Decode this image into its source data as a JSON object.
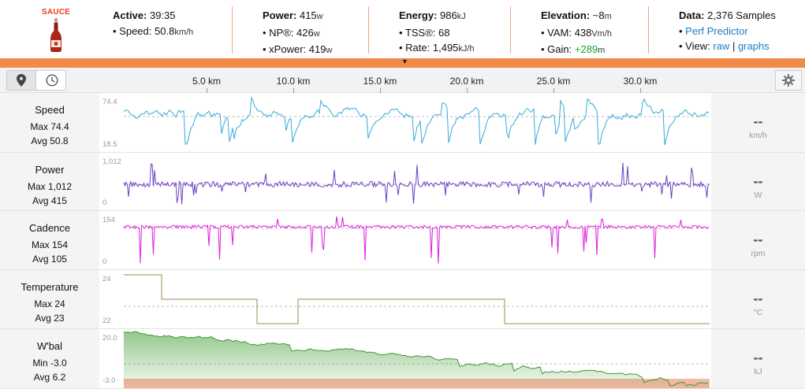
{
  "logo": {
    "brand": "SAUCE"
  },
  "header": {
    "active": {
      "label": "Active:",
      "value": "39:35",
      "speed_label": "Speed:",
      "speed_value": "50.8",
      "speed_unit": "km/h"
    },
    "power": {
      "label": "Power:",
      "value": "415",
      "unit": "w",
      "np_label": "NP®:",
      "np_value": "426",
      "np_unit": "w",
      "xpower_label": "xPower:",
      "xpower_value": "419",
      "xpower_unit": "w"
    },
    "energy": {
      "label": "Energy:",
      "value": "986",
      "unit": "kJ",
      "tss_label": "TSS®:",
      "tss_value": "68",
      "rate_label": "Rate:",
      "rate_value": "1,495",
      "rate_unit": "kJ/h"
    },
    "elevation": {
      "label": "Elevation:",
      "value": "~8",
      "unit": "m",
      "vam_label": "VAM:",
      "vam_value": "438",
      "vam_unit": "Vm/h",
      "gain_label": "Gain:",
      "gain_value": "+289",
      "gain_unit": "m"
    },
    "data": {
      "label": "Data:",
      "value": "2,376 Samples",
      "perf_link": "Perf Predictor",
      "view_label": "View:",
      "view_raw": "raw",
      "view_sep": "|",
      "view_graphs": "graphs"
    }
  },
  "collapse": {
    "icon": "double-chevron-down-icon",
    "glyph": "»"
  },
  "distance_axis": {
    "ticks": [
      "5.0 km",
      "10.0 km",
      "15.0 km",
      "20.0 km",
      "25.0 km",
      "30.0 km"
    ]
  },
  "colors": {
    "accent": "#f28a4a",
    "speed": "#36a9d8",
    "power": "#6c3fc4",
    "cadence": "#e01cde",
    "temperature": "#a08a50",
    "wbal": "#3d9a2e",
    "link": "#1a7fc1"
  },
  "rows": [
    {
      "name": "Speed",
      "stat1_label": "Max",
      "stat1_value": "74.4",
      "stat2_label": "Avg",
      "stat2_value": "50.8",
      "axis_max": "74.4",
      "axis_min": "18.5",
      "live": "--",
      "unit": "km/h"
    },
    {
      "name": "Power",
      "stat1_label": "Max",
      "stat1_value": "1,012",
      "stat2_label": "Avg",
      "stat2_value": "415",
      "axis_max": "1,012",
      "axis_min": "0",
      "live": "--",
      "unit": "W"
    },
    {
      "name": "Cadence",
      "stat1_label": "Max",
      "stat1_value": "154",
      "stat2_label": "Avg",
      "stat2_value": "105",
      "axis_max": "154",
      "axis_min": "0",
      "live": "--",
      "unit": "rpm"
    },
    {
      "name": "Temperature",
      "stat1_label": "Max",
      "stat1_value": "24",
      "stat2_label": "Avg",
      "stat2_value": "23",
      "axis_max": "24",
      "axis_min": "22",
      "live": "--",
      "unit": "°C"
    },
    {
      "name": "W'bal",
      "stat1_label": "Min",
      "stat1_value": "-3.0",
      "stat2_label": "Avg",
      "stat2_value": "6.2",
      "axis_max": "20.0",
      "axis_min": "-3.0",
      "live": "--",
      "unit": "kJ"
    }
  ]
}
